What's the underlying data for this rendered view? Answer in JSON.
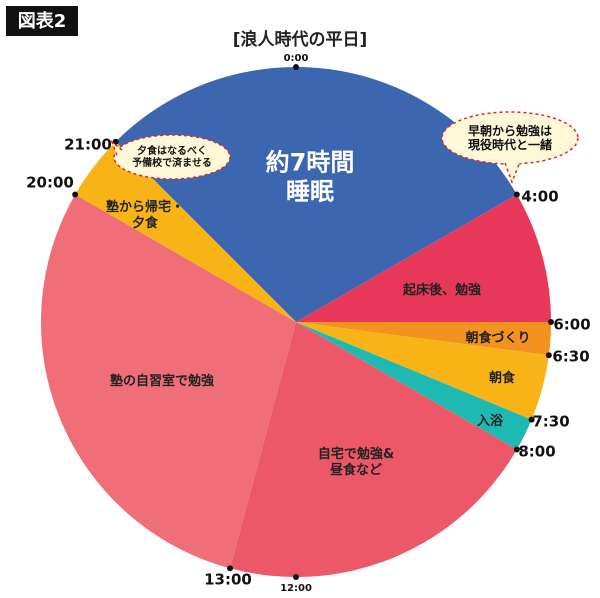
{
  "chart_data": {
    "type": "pie",
    "badge": "図表2",
    "title": "[浪人時代の平日]",
    "categories": [
      [
        "約7時間",
        "睡眠"
      ],
      [
        "起床後、勉強"
      ],
      [
        "朝食づくり"
      ],
      [
        "朝食"
      ],
      [
        "入浴"
      ],
      [
        "自宅で勉強&",
        "昼食など"
      ],
      [
        "塾の自習室で勉強"
      ],
      [
        "塾から帰宅・",
        "夕食"
      ]
    ],
    "values": [
      7,
      2,
      0.5,
      1,
      0.5,
      5,
      7,
      1
    ],
    "colors": [
      "#3d66b0",
      "#e8385a",
      "#f3921f",
      "#f8b417",
      "#1fb9b3",
      "#ec5868",
      "#ef6e77",
      "#f8b417"
    ],
    "clock_ticks": [
      {
        "value": 0,
        "label": "0:00"
      },
      {
        "value": 4,
        "label": "4:00"
      },
      {
        "value": 6,
        "label": "6:00"
      },
      {
        "value": 6.5,
        "label": "6:30"
      },
      {
        "value": 7.5,
        "label": "7:30"
      },
      {
        "value": 8,
        "label": "8:00"
      },
      {
        "value": 12,
        "label": "12:00"
      },
      {
        "value": 13,
        "label": "13:00"
      },
      {
        "value": 20,
        "label": "20:00"
      },
      {
        "value": 21,
        "label": "21:00"
      }
    ],
    "annotations": [
      [
        "早朝から勉強は",
        "現役時代と一緒"
      ],
      [
        "夕食はなるべく",
        "予備校で済ませる"
      ]
    ]
  }
}
